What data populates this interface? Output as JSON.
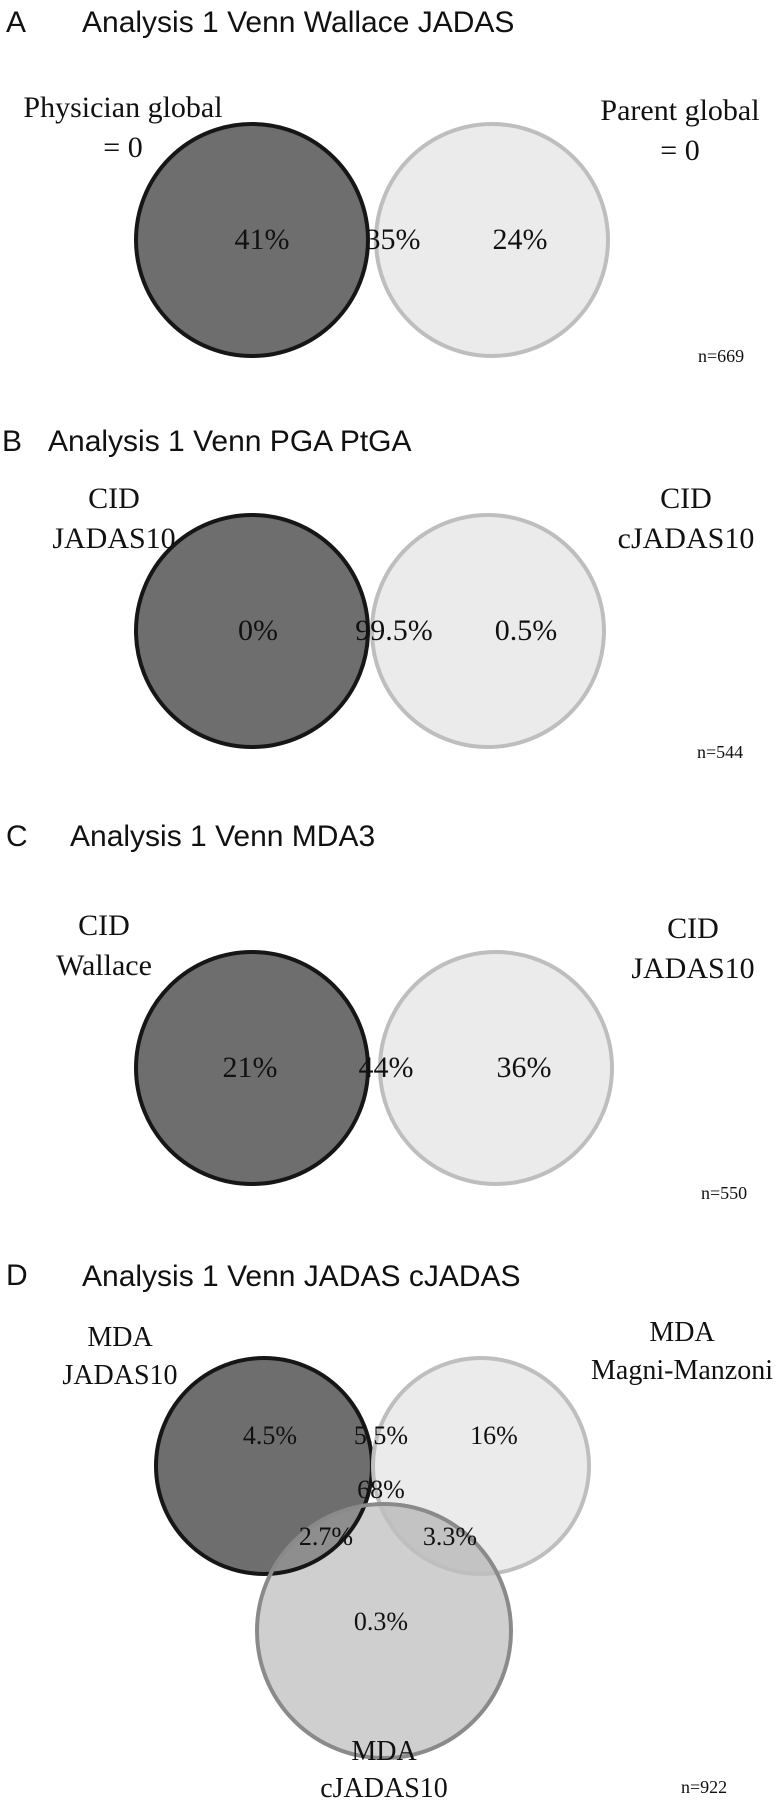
{
  "colors": {
    "left_fill": "#6e6e6e",
    "left_stroke": "#161616",
    "right_fill": "#ebebeb",
    "right_stroke": "#bebebe",
    "overlap_fill": "#9a9a9a",
    "bottom_fill": "#cfcfcf",
    "bottom_stroke": "#8a8a8a",
    "text": "#111111"
  },
  "panels": [
    {
      "letter": "A",
      "title": "Analysis 1 Venn Wallace JADAS",
      "left_label": [
        "Physician global",
        "= 0"
      ],
      "right_label": [
        "Parent global",
        "= 0"
      ],
      "left_only": "41%",
      "overlap": "35%",
      "right_only": "24%",
      "n": "n=669"
    },
    {
      "letter": "B",
      "title": "Analysis 1 Venn PGA PtGA",
      "left_label": [
        "CID",
        "JADAS10"
      ],
      "right_label": [
        "CID",
        "cJADAS10"
      ],
      "left_only": "0%",
      "overlap": "99.5%",
      "right_only": "0.5%",
      "n": "n=544"
    },
    {
      "letter": "C",
      "title": "Analysis 1 Venn MDA3",
      "left_label": [
        "CID",
        "Wallace"
      ],
      "right_label": [
        "CID",
        "JADAS10"
      ],
      "left_only": "21%",
      "overlap": "44%",
      "right_only": "36%",
      "n": "n=550"
    },
    {
      "letter": "D",
      "title": "Analysis 1 Venn JADAS cJADAS",
      "left_label": [
        "MDA",
        "JADAS10"
      ],
      "right_label": [
        "MDA",
        "Magni-Manzoni"
      ],
      "bottom_label": [
        "MDA",
        "cJADAS10"
      ],
      "left_only": "4.5%",
      "left_right": "5.5%",
      "right_only": "16%",
      "center": "68%",
      "left_bottom": "2.7%",
      "right_bottom": "3.3%",
      "bottom_only": "0.3%",
      "n": "n=922"
    }
  ]
}
